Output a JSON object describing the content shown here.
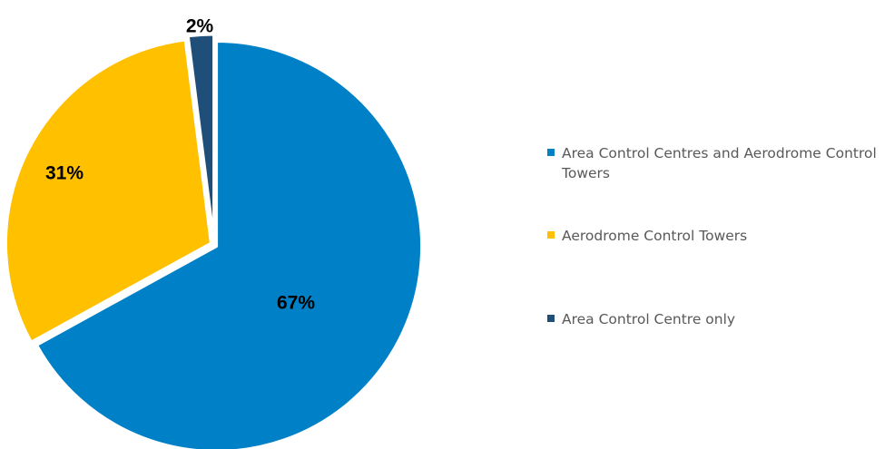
{
  "chart_data": {
    "type": "pie",
    "title": "",
    "slices": [
      {
        "label": "Area Control Centres and Aerodrome Control Towers",
        "value": 67,
        "display": "67%",
        "color": "#0080C6"
      },
      {
        "label": "Aerodrome Control Towers",
        "value": 31,
        "display": "31%",
        "color": "#FFC000"
      },
      {
        "label": "Area Control Centre only",
        "value": 2,
        "display": "2%",
        "color": "#1F4E79"
      }
    ],
    "legend_position": "right"
  }
}
